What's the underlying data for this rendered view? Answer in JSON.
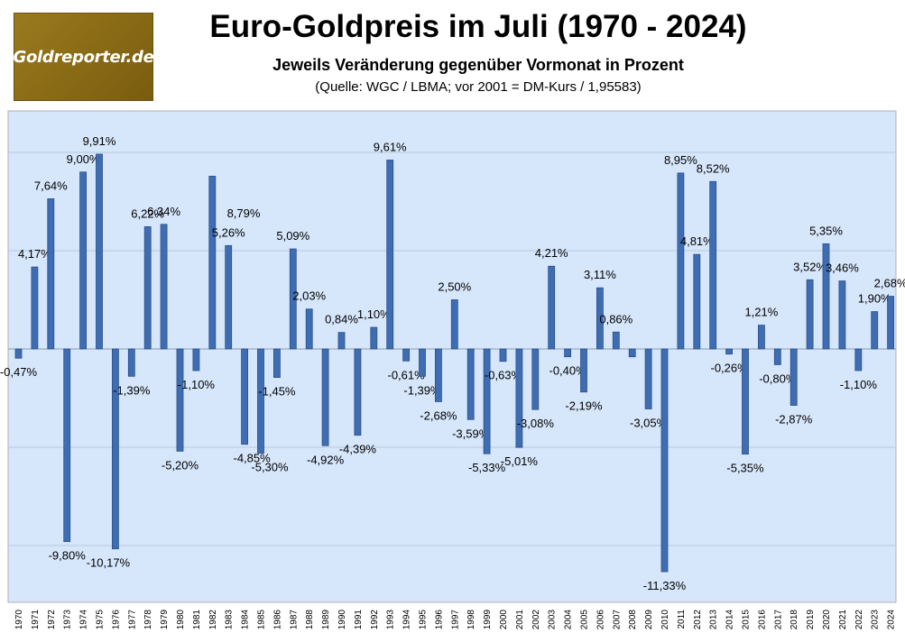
{
  "header": {
    "logo_text": "Goldreporter.de",
    "title": "Euro-Goldpreis im Juli (1970 - 2024)",
    "subtitle": "Jeweils Veränderung gegenüber Vormonat in Prozent",
    "source": "(Quelle: WGC / LBMA; vor 2001 = DM-Kurs / 1,95583)"
  },
  "colors": {
    "bar": "#3f6db3",
    "plot_bg": "#d6e6fb",
    "grid": "#b8c8de"
  },
  "chart_data": {
    "type": "bar",
    "title": "Euro-Goldpreis im Juli (1970 - 2024)",
    "subtitle": "Jeweils Veränderung gegenüber Vormonat in Prozent",
    "xlabel": "",
    "ylabel": "",
    "ylim": [
      -12,
      12
    ],
    "grid": true,
    "legend": "none",
    "categories": [
      "1970",
      "1971",
      "1972",
      "1973",
      "1974",
      "1975",
      "1976",
      "1977",
      "1978",
      "1979",
      "1980",
      "1981",
      "1982",
      "1983",
      "1984",
      "1985",
      "1986",
      "1987",
      "1988",
      "1989",
      "1990",
      "1991",
      "1992",
      "1993",
      "1994",
      "1995",
      "1996",
      "1997",
      "1998",
      "1999",
      "2000",
      "2001",
      "2002",
      "2003",
      "2004",
      "2005",
      "2006",
      "2007",
      "2008",
      "2009",
      "2010",
      "2011",
      "2012",
      "2013",
      "2014",
      "2015",
      "2016",
      "2017",
      "2018",
      "2019",
      "2020",
      "2021",
      "2022",
      "2023",
      "2024"
    ],
    "values": [
      -0.47,
      4.17,
      7.64,
      -9.8,
      9.0,
      9.91,
      -10.17,
      -1.39,
      6.22,
      6.34,
      -5.2,
      -1.1,
      8.79,
      5.26,
      -4.85,
      -5.3,
      -1.45,
      5.09,
      2.03,
      -4.92,
      0.84,
      -4.39,
      1.1,
      9.61,
      -0.61,
      -1.39,
      -2.68,
      2.5,
      -3.59,
      -5.33,
      -0.63,
      -5.01,
      -3.08,
      4.21,
      -0.4,
      -2.19,
      3.11,
      0.86,
      -0.4,
      -3.05,
      -11.33,
      8.95,
      4.81,
      8.52,
      -0.26,
      -5.35,
      1.21,
      -0.8,
      -2.87,
      3.52,
      5.35,
      3.46,
      -1.1,
      1.9,
      2.68
    ],
    "labels": [
      "-0,47%",
      "4,17%",
      "7,64%",
      "-9,80%",
      "9,00%",
      "9,91%",
      "-10,17%",
      "-1,39%",
      "6,22%",
      "6,34%",
      "-5,20%",
      "-1,10%",
      "",
      "5,26%",
      "-4,85%",
      "-5,30%",
      "-1,45%",
      "5,09%",
      "2,03%",
      "-4,92%",
      "0,84%",
      "-4,39%",
      "1,10%",
      "9,61%",
      "-0,61%",
      "-1,39%",
      "-2,68%",
      "2,50%",
      "-3,59%",
      "-5,33%",
      "-0,63%",
      "-5,01%",
      "-3,08%",
      "4,21%",
      "-0,40%",
      "-2,19%",
      "3,11%",
      "0,86%",
      "",
      "-3,05%",
      "-11,33%",
      "8,95%",
      "4,81%",
      "8,52%",
      "-0,26%",
      "-5,35%",
      "1,21%",
      "-0,80%",
      "-2,87%",
      "3,52%",
      "5,35%",
      "3,46%",
      "-1,10%",
      "1,90%",
      "2,68%"
    ],
    "annotations": [
      "8,79%"
    ]
  }
}
